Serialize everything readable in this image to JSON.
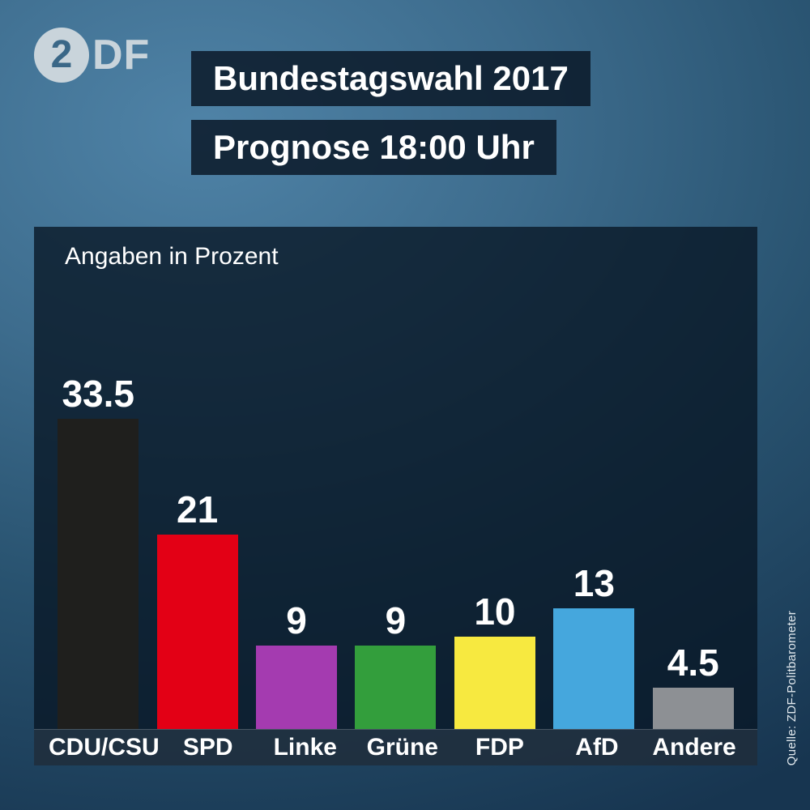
{
  "brand": {
    "circle_char": "2",
    "wordmark": "DF"
  },
  "header": {
    "title": "Bundestagswahl 2017",
    "subtitle": "Prognose 18:00 Uhr"
  },
  "chart_data": {
    "type": "bar",
    "title": "Angaben in Prozent",
    "categories": [
      "CDU/CSU",
      "SPD",
      "Linke",
      "Grüne",
      "FDP",
      "AfD",
      "Andere"
    ],
    "values": [
      33.5,
      21,
      9,
      9,
      10,
      13,
      4.5
    ],
    "value_labels": [
      "33.5",
      "21",
      "9",
      "9",
      "10",
      "13",
      "4.5"
    ],
    "bar_colors": [
      "#1f1f1d",
      "#e30015",
      "#a43bb0",
      "#339e3c",
      "#f7e940",
      "#45a7dd",
      "#8d9094"
    ],
    "xlabel": "",
    "ylabel": "",
    "ylim": [
      0,
      36
    ],
    "grid": false,
    "legend": "none",
    "unit": "Prozent"
  },
  "source": "Quelle: ZDF-Politbarometer"
}
